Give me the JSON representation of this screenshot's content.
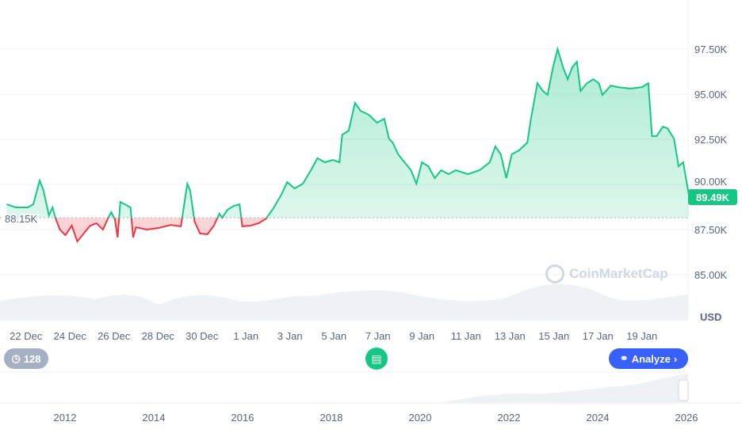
{
  "chart_data": {
    "type": "line",
    "title": "",
    "currency_label": "USD",
    "baseline_value": 88.15,
    "baseline_label": "88.15K",
    "current_value": 89.49,
    "current_label": "89.49K",
    "y_unit": "K USD",
    "ylim": [
      83.5,
      99.5
    ],
    "y_ticks": [
      {
        "v": 97.5,
        "label": "97.50K"
      },
      {
        "v": 95.0,
        "label": "95.00K"
      },
      {
        "v": 92.5,
        "label": "92.50K"
      },
      {
        "v": 90.0,
        "label": "90.00K"
      },
      {
        "v": 87.5,
        "label": "87.50K"
      },
      {
        "v": 85.0,
        "label": "85.00K"
      }
    ],
    "x_ticks": [
      {
        "t": "2025-12-22T00:00",
        "label": "22 Dec"
      },
      {
        "t": "2025-12-24T00:00",
        "label": "24 Dec"
      },
      {
        "t": "2025-12-26T00:00",
        "label": "26 Dec"
      },
      {
        "t": "2025-12-28T00:00",
        "label": "28 Dec"
      },
      {
        "t": "2025-12-30T00:00",
        "label": "30 Dec"
      },
      {
        "t": "2026-01-01T00:00",
        "label": "1 Jan"
      },
      {
        "t": "2026-01-03T00:00",
        "label": "3 Jan"
      },
      {
        "t": "2026-01-05T00:00",
        "label": "5 Jan"
      },
      {
        "t": "2026-01-07T00:00",
        "label": "7 Jan"
      },
      {
        "t": "2026-01-09T00:00",
        "label": "9 Jan"
      },
      {
        "t": "2026-01-11T00:00",
        "label": "11 Jan"
      },
      {
        "t": "2026-01-13T00:00",
        "label": "13 Jan"
      },
      {
        "t": "2026-01-15T00:00",
        "label": "15 Jan"
      },
      {
        "t": "2026-01-17T00:00",
        "label": "17 Jan"
      },
      {
        "t": "2026-01-19T00:00",
        "label": "19 Jan"
      }
    ],
    "colors": {
      "up": "#16c784",
      "down": "#ea3943",
      "grid": "#eff2f5"
    },
    "points": [
      [
        "2025-12-21T03:00",
        88.9
      ],
      [
        "2025-12-21T13:00",
        88.73
      ],
      [
        "2025-12-22T02:00",
        88.73
      ],
      [
        "2025-12-22T08:00",
        88.9
      ],
      [
        "2025-12-22T15:00",
        90.22
      ],
      [
        "2025-12-22T19:00",
        89.69
      ],
      [
        "2025-12-23T01:00",
        88.29
      ],
      [
        "2025-12-23T05:00",
        88.73
      ],
      [
        "2025-12-23T08:00",
        88.16
      ],
      [
        "2025-12-23T13:00",
        87.5
      ],
      [
        "2025-12-23T19:00",
        87.19
      ],
      [
        "2025-12-24T02:00",
        87.72
      ],
      [
        "2025-12-24T08:00",
        86.84
      ],
      [
        "2025-12-24T15:00",
        87.28
      ],
      [
        "2025-12-24T22:00",
        87.72
      ],
      [
        "2025-12-25T05:00",
        87.85
      ],
      [
        "2025-12-25T12:00",
        87.5
      ],
      [
        "2025-12-25T17:00",
        88.07
      ],
      [
        "2025-12-25T21:00",
        88.46
      ],
      [
        "2025-12-26T01:00",
        88.07
      ],
      [
        "2025-12-26T04:00",
        87.06
      ],
      [
        "2025-12-26T07:00",
        89.03
      ],
      [
        "2025-12-26T12:00",
        88.9
      ],
      [
        "2025-12-26T18:00",
        88.73
      ],
      [
        "2025-12-26T21:00",
        87.06
      ],
      [
        "2025-12-27T00:00",
        87.63
      ],
      [
        "2025-12-27T12:00",
        87.5
      ],
      [
        "2025-12-28T01:00",
        87.59
      ],
      [
        "2025-12-28T14:00",
        87.76
      ],
      [
        "2025-12-29T01:00",
        87.68
      ],
      [
        "2025-12-29T08:00",
        90.04
      ],
      [
        "2025-12-29T11:00",
        89.69
      ],
      [
        "2025-12-29T16:00",
        87.94
      ],
      [
        "2025-12-29T22:00",
        87.28
      ],
      [
        "2025-12-30T06:00",
        87.24
      ],
      [
        "2025-12-30T13:00",
        87.72
      ],
      [
        "2025-12-30T19:00",
        88.38
      ],
      [
        "2025-12-30T22:00",
        88.16
      ],
      [
        "2025-12-31T04:00",
        88.6
      ],
      [
        "2025-12-31T11:00",
        88.82
      ],
      [
        "2025-12-31T17:00",
        88.9
      ],
      [
        "2025-12-31T20:00",
        87.68
      ],
      [
        "2026-01-01T05:00",
        87.72
      ],
      [
        "2026-01-01T14:00",
        87.85
      ],
      [
        "2026-01-01T22:00",
        88.11
      ],
      [
        "2026-01-02T06:00",
        88.68
      ],
      [
        "2026-01-02T15:00",
        89.47
      ],
      [
        "2026-01-02T21:00",
        90.13
      ],
      [
        "2026-01-03T05:00",
        89.78
      ],
      [
        "2026-01-03T14:00",
        90.04
      ],
      [
        "2026-01-03T23:00",
        90.79
      ],
      [
        "2026-01-04T06:00",
        91.45
      ],
      [
        "2026-01-04T14:00",
        91.23
      ],
      [
        "2026-01-04T23:00",
        91.36
      ],
      [
        "2026-01-05T06:00",
        91.23
      ],
      [
        "2026-01-05T09:00",
        92.76
      ],
      [
        "2026-01-05T16:00",
        92.98
      ],
      [
        "2026-01-05T23:00",
        94.52
      ],
      [
        "2026-01-06T05:00",
        94.08
      ],
      [
        "2026-01-06T14:00",
        93.86
      ],
      [
        "2026-01-06T23:00",
        93.42
      ],
      [
        "2026-01-07T07:00",
        93.64
      ],
      [
        "2026-01-07T12:00",
        92.54
      ],
      [
        "2026-01-07T16:00",
        92.32
      ],
      [
        "2026-01-07T22:00",
        91.67
      ],
      [
        "2026-01-08T05:00",
        91.23
      ],
      [
        "2026-01-08T12:00",
        90.79
      ],
      [
        "2026-01-08T18:00",
        90.04
      ],
      [
        "2026-01-09T00:00",
        91.23
      ],
      [
        "2026-01-09T07:00",
        91.01
      ],
      [
        "2026-01-09T14:00",
        90.35
      ],
      [
        "2026-01-09T21:00",
        90.79
      ],
      [
        "2026-01-10T05:00",
        90.57
      ],
      [
        "2026-01-10T13:00",
        90.79
      ],
      [
        "2026-01-11T02:00",
        90.57
      ],
      [
        "2026-01-11T15:00",
        90.79
      ],
      [
        "2026-01-12T02:00",
        91.23
      ],
      [
        "2026-01-12T08:00",
        92.11
      ],
      [
        "2026-01-12T14:00",
        91.67
      ],
      [
        "2026-01-12T20:00",
        90.35
      ],
      [
        "2026-01-13T02:00",
        91.67
      ],
      [
        "2026-01-13T10:00",
        91.89
      ],
      [
        "2026-01-13T19:00",
        92.32
      ],
      [
        "2026-01-13T23:00",
        93.64
      ],
      [
        "2026-01-14T06:00",
        95.61
      ],
      [
        "2026-01-14T12:00",
        95.18
      ],
      [
        "2026-01-14T17:00",
        94.96
      ],
      [
        "2026-01-14T23:00",
        96.49
      ],
      [
        "2026-01-15T04:00",
        97.5
      ],
      [
        "2026-01-15T10:00",
        96.49
      ],
      [
        "2026-01-15T15:00",
        95.83
      ],
      [
        "2026-01-15T20:00",
        96.49
      ],
      [
        "2026-01-16T01:00",
        96.8
      ],
      [
        "2026-01-16T05:00",
        95.18
      ],
      [
        "2026-01-16T12:00",
        95.61
      ],
      [
        "2026-01-16T19:00",
        95.83
      ],
      [
        "2026-01-17T01:00",
        95.61
      ],
      [
        "2026-01-17T05:00",
        94.96
      ],
      [
        "2026-01-17T14:00",
        95.48
      ],
      [
        "2026-01-17T22:00",
        95.39
      ],
      [
        "2026-01-18T11:00",
        95.31
      ],
      [
        "2026-01-19T00:00",
        95.39
      ],
      [
        "2026-01-19T07:00",
        95.61
      ],
      [
        "2026-01-19T11:00",
        92.68
      ],
      [
        "2026-01-19T16:00",
        92.68
      ],
      [
        "2026-01-19T23:00",
        93.2
      ],
      [
        "2026-01-20T04:00",
        93.11
      ],
      [
        "2026-01-20T11:00",
        92.54
      ],
      [
        "2026-01-20T16:00",
        91.01
      ],
      [
        "2026-01-20T21:00",
        91.23
      ],
      [
        "2026-01-21T03:00",
        89.49
      ]
    ],
    "navigator": {
      "x_ticks": [
        "2012",
        "2014",
        "2016",
        "2018",
        "2020",
        "2022",
        "2024",
        "2026"
      ]
    }
  },
  "controls": {
    "history_count": "128",
    "analyze_label": "Analyze",
    "watermark": "CoinMarketCap"
  }
}
